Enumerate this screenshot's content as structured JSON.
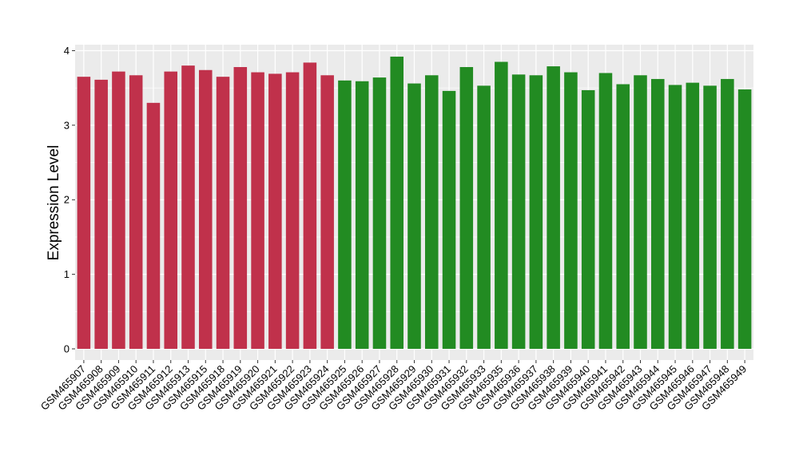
{
  "chart_data": {
    "type": "bar",
    "title": "",
    "xlabel": "",
    "ylabel": "Expression Level",
    "ylim": [
      -0.15,
      4.08
    ],
    "yticks": [
      0,
      1,
      2,
      3,
      4
    ],
    "grid": true,
    "panel_background": "#ebebeb",
    "grid_color": "#ffffff",
    "categories": [
      "GSM465907",
      "GSM465908",
      "GSM465909",
      "GSM465910",
      "GSM465911",
      "GSM465912",
      "GSM465913",
      "GSM465915",
      "GSM465918",
      "GSM465919",
      "GSM465920",
      "GSM465921",
      "GSM465922",
      "GSM465923",
      "GSM465924",
      "GSM465925",
      "GSM465926",
      "GSM465927",
      "GSM465928",
      "GSM465929",
      "GSM465930",
      "GSM465931",
      "GSM465932",
      "GSM465933",
      "GSM465935",
      "GSM465936",
      "GSM465937",
      "GSM465938",
      "GSM465939",
      "GSM465940",
      "GSM465941",
      "GSM465942",
      "GSM465943",
      "GSM465944",
      "GSM465945",
      "GSM465946",
      "GSM465947",
      "GSM465948",
      "GSM465949"
    ],
    "values": [
      3.65,
      3.61,
      3.72,
      3.67,
      3.3,
      3.72,
      3.8,
      3.74,
      3.65,
      3.78,
      3.71,
      3.69,
      3.71,
      3.84,
      3.67,
      3.6,
      3.59,
      3.64,
      3.92,
      3.56,
      3.67,
      3.46,
      3.78,
      3.53,
      3.85,
      3.68,
      3.67,
      3.79,
      3.71,
      3.47,
      3.7,
      3.55,
      3.67,
      3.62,
      3.54,
      3.57,
      3.53,
      3.62,
      3.48
    ],
    "bar_colors": [
      "#c0314b",
      "#c0314b",
      "#c0314b",
      "#c0314b",
      "#c0314b",
      "#c0314b",
      "#c0314b",
      "#c0314b",
      "#c0314b",
      "#c0314b",
      "#c0314b",
      "#c0314b",
      "#c0314b",
      "#c0314b",
      "#c0314b",
      "#228b22",
      "#228b22",
      "#228b22",
      "#228b22",
      "#228b22",
      "#228b22",
      "#228b22",
      "#228b22",
      "#228b22",
      "#228b22",
      "#228b22",
      "#228b22",
      "#228b22",
      "#228b22",
      "#228b22",
      "#228b22",
      "#228b22",
      "#228b22",
      "#228b22",
      "#228b22",
      "#228b22",
      "#228b22",
      "#228b22",
      "#228b22"
    ]
  }
}
